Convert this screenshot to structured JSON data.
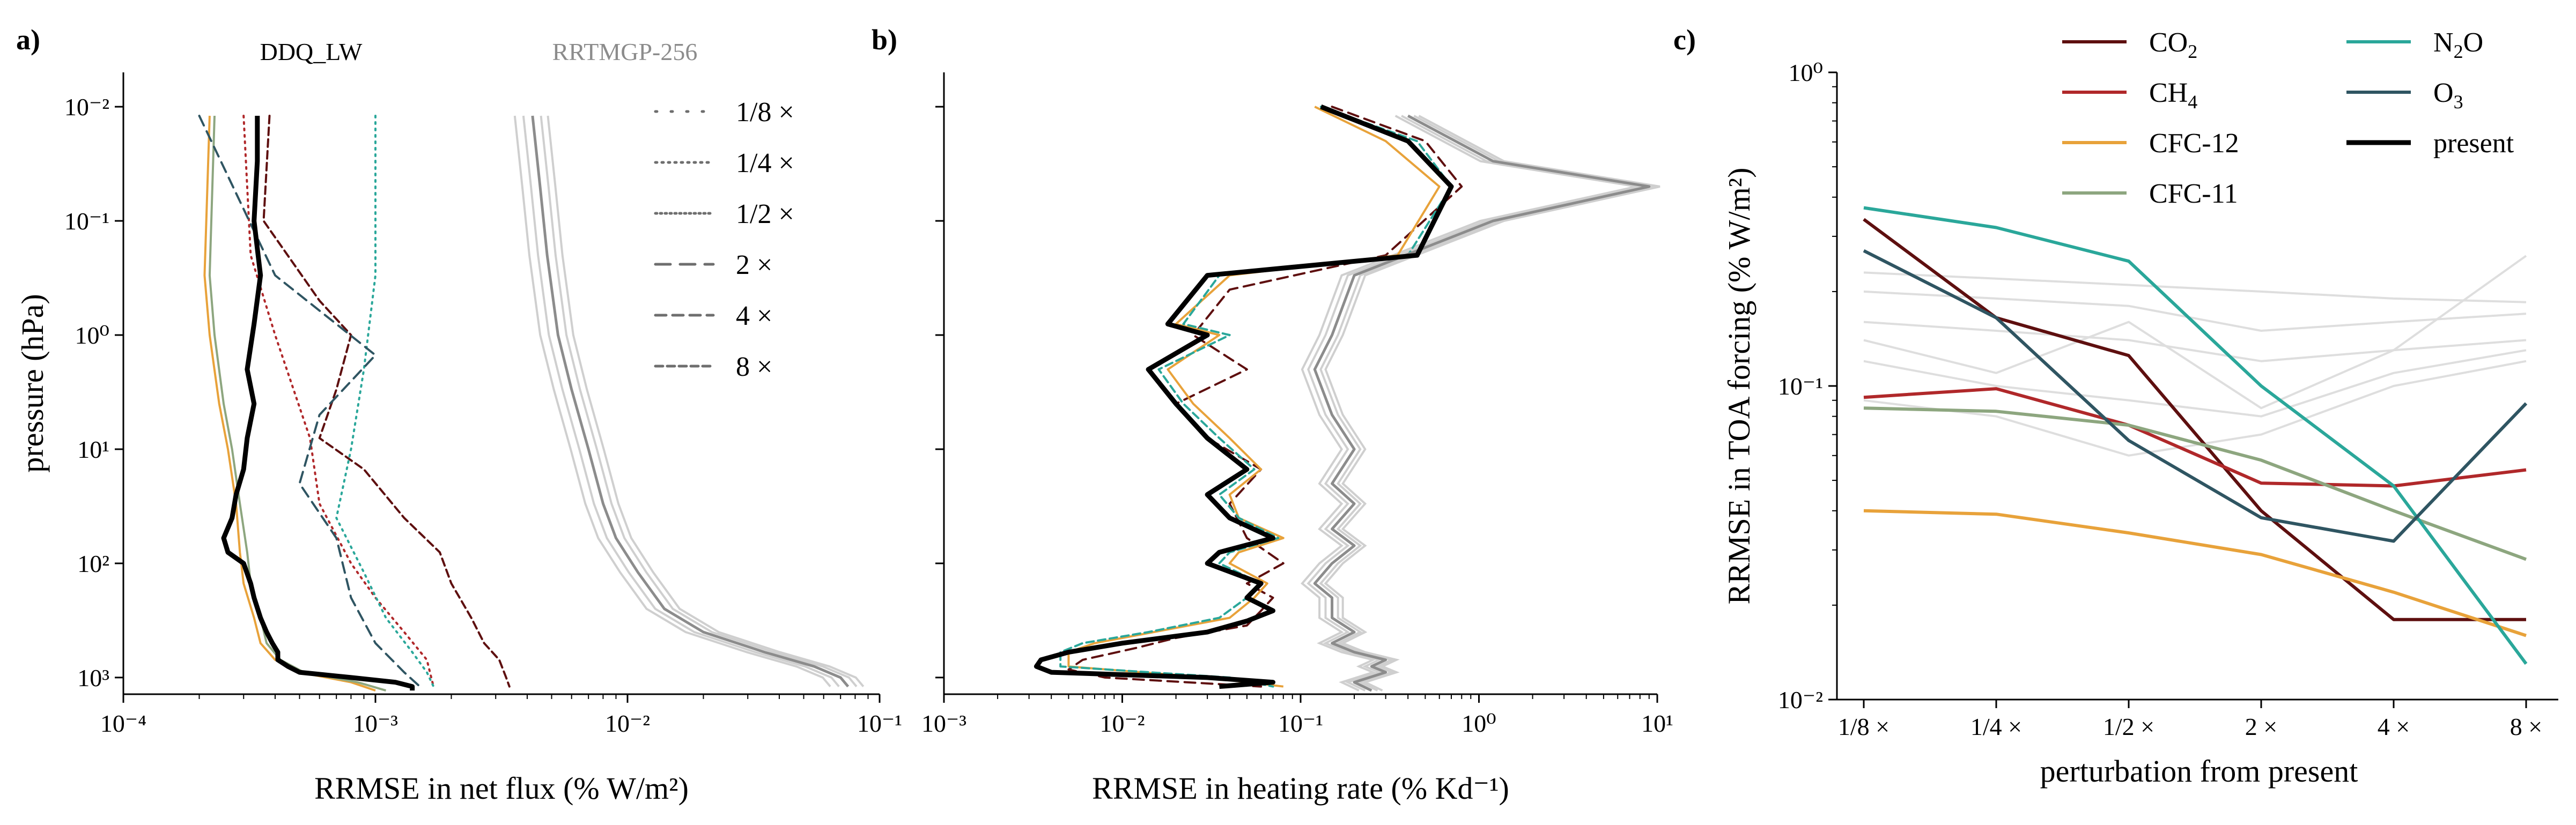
{
  "colors": {
    "CO2": "#5e0f0f",
    "CH4": "#b0282a",
    "CFC-12": "#e8a23a",
    "CFC-11": "#8da67f",
    "N2O": "#2aa79a",
    "O3": "#2f5562",
    "present": "#000000",
    "rrtmgp": "#8c8c8c",
    "rrtmgp_light": "#cfcfcf",
    "background_lines": "#dedede"
  },
  "chart_data": [
    {
      "panel": "a)",
      "type": "line",
      "title": "",
      "xlabel": "RRMSE in net flux (% W/m²)",
      "ylabel": "pressure (hPa)",
      "xscale": "log",
      "yscale": "log",
      "y_inverted": true,
      "xlim": [
        0.0001,
        0.1
      ],
      "ylim": [
        0.005,
        1400
      ],
      "x_ticks": [
        "10⁻⁴",
        "10⁻³",
        "10⁻²",
        "10⁻¹"
      ],
      "y_ticks": [
        "10⁻²",
        "10⁻¹",
        "10⁰",
        "10¹",
        "10²",
        "10³"
      ],
      "annotations": [
        "DDQ_LW",
        "RRTMGP-256"
      ],
      "legend": {
        "placement": "top-right",
        "entries": [
          {
            "label": "1/8 ×",
            "style": "sparse-dot"
          },
          {
            "label": "1/4 ×",
            "style": "dotted"
          },
          {
            "label": "1/2 ×",
            "style": "dense-dotted"
          },
          {
            "label": "2 ×",
            "style": "long-dash"
          },
          {
            "label": "4 ×",
            "style": "dash"
          },
          {
            "label": "8 ×",
            "style": "dense-dash"
          }
        ]
      },
      "series": [
        {
          "gas": "present",
          "style": "solid-thick",
          "x": [
            0.00034,
            0.00034,
            0.00033,
            0.00035,
            0.00033,
            0.00031,
            0.00033,
            0.00031,
            0.0003,
            0.00028,
            0.00027,
            0.00025,
            0.00026,
            0.0003,
            0.00032,
            0.00033,
            0.00035,
            0.00037,
            0.00039,
            0.00041,
            0.00041,
            0.00045,
            0.0005,
            0.0008,
            0.0012,
            0.0014,
            0.0014
          ],
          "y": [
            0.012,
            0.03,
            0.1,
            0.3,
            0.8,
            2,
            4,
            8,
            15,
            25,
            40,
            60,
            80,
            100,
            150,
            200,
            300,
            400,
            500,
            600,
            700,
            800,
            900,
            1000,
            1100,
            1200,
            1300
          ]
        },
        {
          "gas": "CO2",
          "style": "dense-dash",
          "x": [
            0.00038,
            0.00036,
            0.0006,
            0.0008,
            0.0007,
            0.0006,
            0.0009,
            0.0013,
            0.0018,
            0.002,
            0.0024,
            0.0027,
            0.0031,
            0.0033,
            0.0034
          ],
          "y": [
            0.012,
            0.1,
            0.5,
            1,
            3,
            8,
            15,
            40,
            80,
            150,
            300,
            500,
            700,
            1000,
            1200
          ]
        },
        {
          "gas": "CH4",
          "style": "dotted",
          "x": [
            0.0003,
            0.00032,
            0.0004,
            0.00055,
            0.0006,
            0.0008,
            0.001,
            0.0013,
            0.0016,
            0.0017
          ],
          "y": [
            0.012,
            0.2,
            1,
            8,
            30,
            100,
            200,
            400,
            700,
            1200
          ]
        },
        {
          "gas": "CFC-12",
          "style": "solid",
          "x": [
            0.00022,
            0.00021,
            0.00022,
            0.00024,
            0.00026,
            0.00028,
            0.00029,
            0.0003,
            0.00033,
            0.00035,
            0.0004,
            0.0005,
            0.0008,
            0.001
          ],
          "y": [
            0.012,
            0.3,
            1,
            4,
            10,
            30,
            80,
            150,
            300,
            500,
            700,
            900,
            1100,
            1300
          ]
        },
        {
          "gas": "CFC-11",
          "style": "solid",
          "x": [
            0.00023,
            0.00022,
            0.00023,
            0.00025,
            0.00027,
            0.00029,
            0.00031,
            0.00032,
            0.00035,
            0.00037,
            0.00042,
            0.00052,
            0.00085,
            0.0011
          ],
          "y": [
            0.012,
            0.3,
            1,
            4,
            10,
            30,
            80,
            150,
            300,
            500,
            700,
            900,
            1100,
            1300
          ]
        },
        {
          "gas": "N2O",
          "style": "dotted",
          "x": [
            0.001,
            0.001,
            0.0009,
            0.0008,
            0.0007,
            0.0009,
            0.0011,
            0.0014,
            0.0016,
            0.0017
          ],
          "y": [
            0.012,
            0.3,
            2,
            10,
            40,
            120,
            300,
            600,
            900,
            1200
          ]
        },
        {
          "gas": "O3",
          "style": "dash",
          "x": [
            0.0002,
            0.0004,
            0.001,
            0.0006,
            0.0005,
            0.0007,
            0.0008,
            0.001,
            0.0013,
            0.0015
          ],
          "y": [
            0.012,
            0.3,
            1.5,
            5,
            20,
            60,
            200,
            500,
            900,
            1200
          ]
        },
        {
          "gas": "RRTMGP-256",
          "style": "solid-grey",
          "x": [
            0.0042,
            0.0045,
            0.0048,
            0.0053,
            0.006,
            0.007,
            0.008,
            0.009,
            0.011,
            0.014,
            0.02,
            0.035,
            0.055,
            0.07,
            0.075
          ],
          "y": [
            0.012,
            0.05,
            0.2,
            1,
            3,
            10,
            30,
            60,
            120,
            250,
            400,
            600,
            800,
            1000,
            1200
          ]
        }
      ]
    },
    {
      "panel": "b)",
      "type": "line",
      "title": "",
      "xlabel": "RRMSE in heating rate (% Kd⁻¹)",
      "ylabel": "",
      "xscale": "log",
      "yscale": "log",
      "y_inverted": true,
      "xlim": [
        0.001,
        10
      ],
      "ylim": [
        0.005,
        1400
      ],
      "x_ticks": [
        "10⁻³",
        "10⁻²",
        "10⁻¹",
        "10⁰",
        "10¹"
      ],
      "series": [
        {
          "gas": "present",
          "style": "solid-thick",
          "x": [
            0.13,
            0.4,
            0.7,
            0.45,
            0.03,
            0.018,
            0.03,
            0.014,
            0.02,
            0.03,
            0.05,
            0.03,
            0.04,
            0.07,
            0.035,
            0.03,
            0.06,
            0.05,
            0.07,
            0.05,
            0.03,
            0.01,
            0.005,
            0.0035,
            0.0033,
            0.004,
            0.03,
            0.07,
            0.035
          ],
          "y": [
            0.01,
            0.02,
            0.05,
            0.2,
            0.3,
            0.8,
            1,
            2,
            4,
            8,
            15,
            25,
            40,
            60,
            80,
            100,
            150,
            200,
            260,
            320,
            400,
            500,
            600,
            700,
            800,
            900,
            1000,
            1100,
            1200
          ]
        },
        {
          "gas": "CO2",
          "style": "dash",
          "x": [
            0.15,
            0.5,
            0.8,
            0.3,
            0.04,
            0.025,
            0.05,
            0.02,
            0.03,
            0.06,
            0.04,
            0.05,
            0.08,
            0.05,
            0.07,
            0.06,
            0.05,
            0.02,
            0.012,
            0.006,
            0.005,
            0.008,
            0.06
          ],
          "y": [
            0.01,
            0.02,
            0.05,
            0.2,
            0.4,
            1,
            2,
            4,
            8,
            15,
            30,
            60,
            100,
            150,
            200,
            260,
            350,
            450,
            550,
            700,
            850,
            1000,
            1200
          ]
        },
        {
          "gas": "CFC-12",
          "style": "solid",
          "x": [
            0.12,
            0.3,
            0.6,
            0.35,
            0.04,
            0.02,
            0.035,
            0.018,
            0.025,
            0.04,
            0.06,
            0.04,
            0.045,
            0.08,
            0.045,
            0.04,
            0.065,
            0.055,
            0.04,
            0.015,
            0.007,
            0.005,
            0.005,
            0.03,
            0.08
          ],
          "y": [
            0.01,
            0.02,
            0.05,
            0.2,
            0.3,
            0.8,
            1,
            2,
            4,
            8,
            15,
            25,
            40,
            60,
            80,
            100,
            150,
            200,
            300,
            400,
            500,
            600,
            800,
            1000,
            1200
          ]
        },
        {
          "gas": "N2O",
          "style": "dense-dash",
          "x": [
            0.13,
            0.45,
            0.7,
            0.4,
            0.035,
            0.022,
            0.04,
            0.016,
            0.022,
            0.035,
            0.055,
            0.035,
            0.045,
            0.075,
            0.04,
            0.035,
            0.06,
            0.05,
            0.035,
            0.014,
            0.006,
            0.0045,
            0.0045,
            0.04,
            0.07
          ],
          "y": [
            0.01,
            0.02,
            0.05,
            0.2,
            0.3,
            0.8,
            1,
            2,
            4,
            8,
            15,
            25,
            40,
            60,
            80,
            100,
            150,
            200,
            300,
            400,
            500,
            600,
            800,
            1000,
            1200
          ]
        },
        {
          "gas": "RRTMGP-256",
          "style": "solid-grey",
          "x": [
            0.4,
            1.2,
            9.0,
            1.2,
            0.2,
            0.15,
            0.12,
            0.15,
            0.2,
            0.15,
            0.2,
            0.15,
            0.2,
            0.15,
            0.12,
            0.15,
            0.15,
            0.2,
            0.15,
            0.2,
            0.3,
            0.25,
            0.3,
            0.2,
            0.25
          ],
          "y": [
            0.012,
            0.03,
            0.05,
            0.1,
            0.3,
            1,
            2,
            5,
            10,
            20,
            30,
            50,
            70,
            100,
            150,
            200,
            300,
            400,
            500,
            600,
            700,
            800,
            900,
            1100,
            1300
          ]
        }
      ]
    },
    {
      "panel": "c)",
      "type": "line",
      "title": "",
      "xlabel": "perturbation from present",
      "ylabel": "RRMSE in TOA forcing (% W/m²)",
      "yscale": "log",
      "ylim": [
        0.01,
        1
      ],
      "categories": [
        "1/8 ×",
        "1/4 ×",
        "1/2 ×",
        "2 ×",
        "4 ×",
        "8 ×"
      ],
      "y_ticks": [
        "10⁻²",
        "10⁻¹",
        "10⁰"
      ],
      "legend": {
        "placement": "top",
        "entries": [
          {
            "label": "CO",
            "sub": "2",
            "gas": "CO2"
          },
          {
            "label": "CH",
            "sub": "4",
            "gas": "CH4"
          },
          {
            "label": "CFC-12",
            "sub": "",
            "gas": "CFC-12"
          },
          {
            "label": "CFC-11",
            "sub": "",
            "gas": "CFC-11"
          },
          {
            "label": "N",
            "sub": "2",
            "suffix": "O",
            "gas": "N2O"
          },
          {
            "label": "O",
            "sub": "3",
            "gas": "O3"
          },
          {
            "label": "present",
            "sub": "",
            "gas": "present"
          }
        ]
      },
      "series": [
        {
          "gas": "CO2",
          "values": [
            0.34,
            0.165,
            0.125,
            0.04,
            0.018,
            0.018
          ]
        },
        {
          "gas": "CH4",
          "values": [
            0.092,
            0.098,
            0.075,
            0.049,
            0.048,
            0.054
          ]
        },
        {
          "gas": "CFC-12",
          "values": [
            0.04,
            0.039,
            0.034,
            0.029,
            0.022,
            0.016
          ]
        },
        {
          "gas": "CFC-11",
          "values": [
            0.085,
            0.083,
            0.075,
            0.058,
            0.04,
            0.028
          ]
        },
        {
          "gas": "N2O",
          "values": [
            0.37,
            0.32,
            0.25,
            0.1,
            0.048,
            0.013
          ]
        },
        {
          "gas": "O3",
          "values": [
            0.27,
            0.165,
            0.067,
            0.038,
            0.032,
            0.088
          ]
        },
        {
          "gas": "background-1",
          "values": [
            0.23,
            0.22,
            0.21,
            0.2,
            0.19,
            0.185
          ]
        },
        {
          "gas": "background-2",
          "values": [
            0.2,
            0.19,
            0.18,
            0.15,
            0.16,
            0.17
          ]
        },
        {
          "gas": "background-3",
          "values": [
            0.16,
            0.15,
            0.14,
            0.12,
            0.13,
            0.14
          ]
        },
        {
          "gas": "background-4",
          "values": [
            0.12,
            0.1,
            0.09,
            0.08,
            0.11,
            0.13
          ]
        },
        {
          "gas": "background-5",
          "values": [
            0.09,
            0.08,
            0.06,
            0.07,
            0.1,
            0.12
          ]
        },
        {
          "gas": "background-6",
          "values": [
            0.14,
            0.11,
            0.16,
            0.085,
            0.13,
            0.26
          ]
        }
      ]
    }
  ]
}
